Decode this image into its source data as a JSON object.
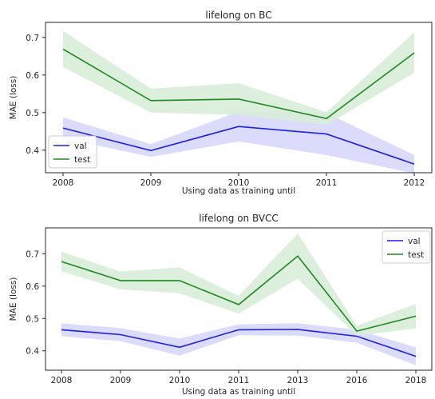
{
  "chart_data": [
    {
      "type": "line",
      "title": "lifelong on BC",
      "xlabel": "Using data as training until",
      "ylabel": "MAE (loss)",
      "categories": [
        "2008",
        "2009",
        "2010",
        "2011",
        "2012"
      ],
      "ylim": [
        0.34,
        0.74
      ],
      "yticks": [
        "0.4",
        "0.5",
        "0.6",
        "0.7"
      ],
      "grid": false,
      "legend_position": "lower-left",
      "series": [
        {
          "name": "val",
          "color": "#1f1fe6",
          "band_color": "#d7d7fb",
          "values": [
            0.459,
            0.399,
            0.463,
            0.443,
            0.363
          ],
          "lower": [
            0.432,
            0.382,
            0.423,
            0.387,
            0.338
          ],
          "upper": [
            0.487,
            0.416,
            0.503,
            0.499,
            0.387
          ]
        },
        {
          "name": "test",
          "color": "#1f8a1f",
          "band_color": "#d8ecd8",
          "values": [
            0.669,
            0.532,
            0.536,
            0.484,
            0.659
          ],
          "lower": [
            0.621,
            0.5,
            0.494,
            0.467,
            0.606
          ],
          "upper": [
            0.717,
            0.564,
            0.578,
            0.501,
            0.713
          ]
        }
      ]
    },
    {
      "type": "line",
      "title": "lifelong on BVCC",
      "xlabel": "Using data as training until",
      "ylabel": "MAE (loss)",
      "categories": [
        "2008",
        "2009",
        "2010",
        "2011",
        "2013",
        "2016",
        "2018"
      ],
      "ylim": [
        0.34,
        0.78
      ],
      "yticks": [
        "0.4",
        "0.5",
        "0.6",
        "0.7"
      ],
      "grid": false,
      "legend_position": "upper-right",
      "series": [
        {
          "name": "val",
          "color": "#1f1fe6",
          "band_color": "#d7d7fb",
          "values": [
            0.465,
            0.45,
            0.411,
            0.465,
            0.466,
            0.445,
            0.383
          ],
          "lower": [
            0.445,
            0.43,
            0.385,
            0.448,
            0.447,
            0.425,
            0.355
          ],
          "upper": [
            0.485,
            0.47,
            0.438,
            0.482,
            0.485,
            0.465,
            0.411
          ]
        },
        {
          "name": "test",
          "color": "#1f8a1f",
          "band_color": "#d8ecd8",
          "values": [
            0.676,
            0.617,
            0.617,
            0.543,
            0.693,
            0.461,
            0.507
          ],
          "lower": [
            0.646,
            0.59,
            0.578,
            0.515,
            0.623,
            0.447,
            0.469
          ],
          "upper": [
            0.706,
            0.645,
            0.658,
            0.57,
            0.763,
            0.478,
            0.545
          ]
        }
      ]
    }
  ]
}
